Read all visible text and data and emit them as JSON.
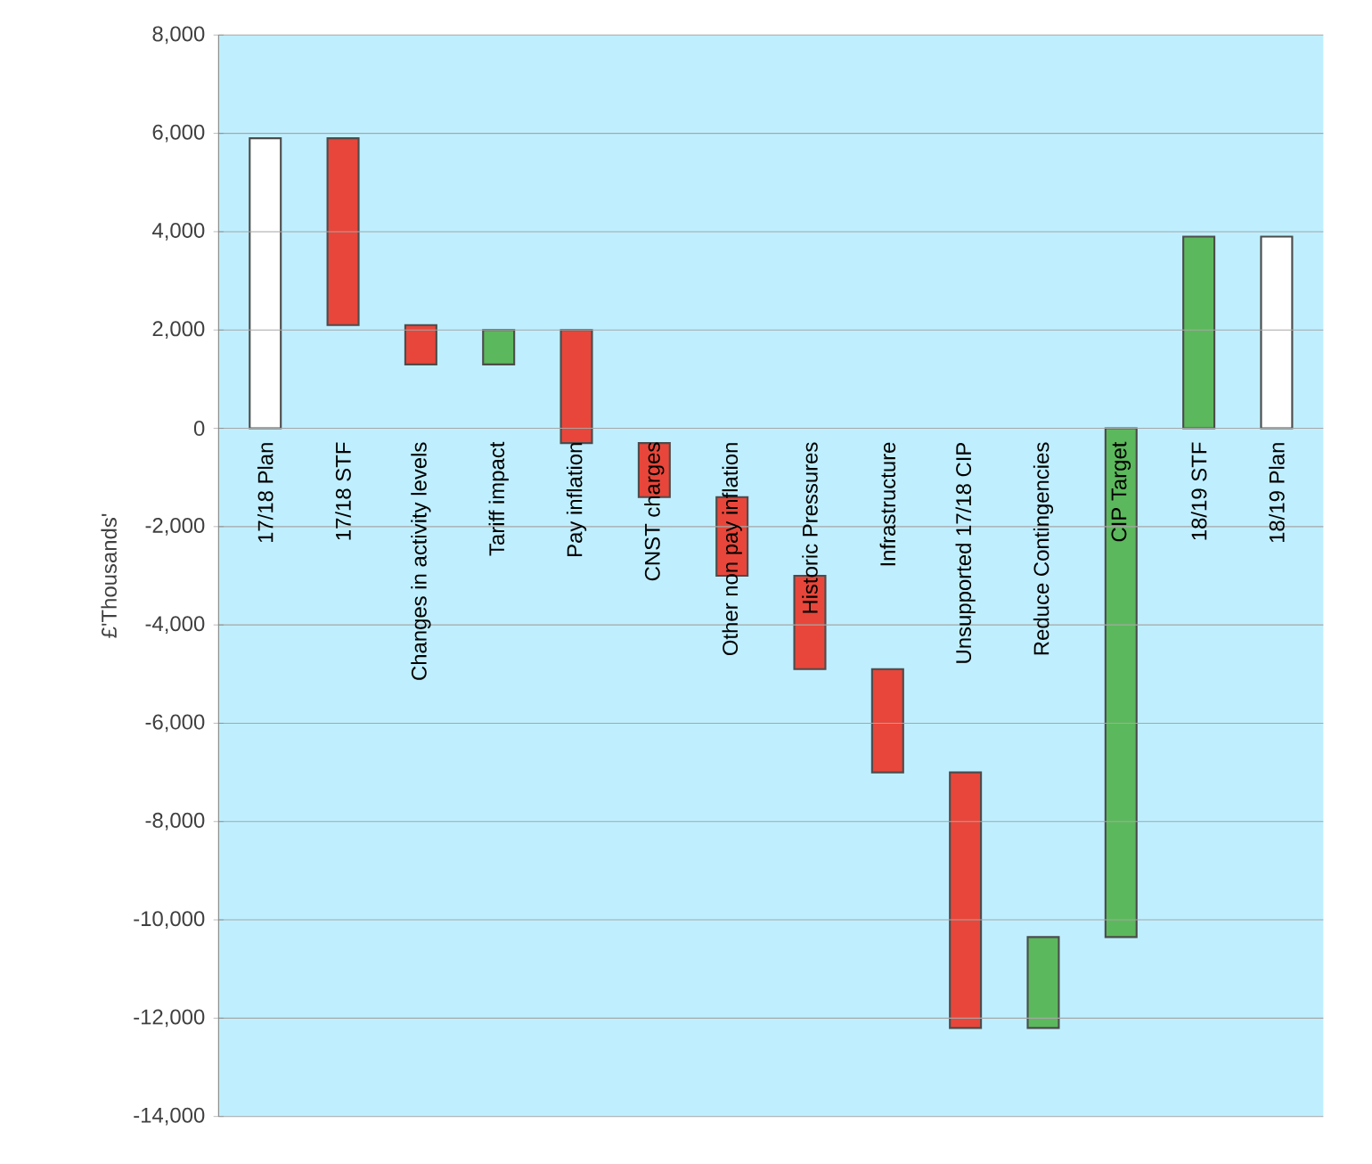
{
  "chart_data": {
    "type": "bar",
    "ylabel": "£'Thousands'",
    "categories": [
      "17/18 Plan",
      "17/18 STF",
      "Changes in activity levels",
      "Tariff impact",
      "Pay inflation",
      "CNST charges",
      "Other non pay inflation",
      "Historic Pressures",
      "Infrastructure",
      "Unsupported 17/18 CIP",
      "Reduce Contingencies",
      "CIP Target",
      "18/19 STF",
      "18/19 Plan"
    ],
    "values": [
      5900,
      3800,
      800,
      700,
      2300,
      1100,
      1600,
      1900,
      2100,
      5200,
      1850,
      10350,
      3900,
      3900
    ],
    "base": [
      0,
      2100,
      1300,
      1300,
      -300,
      -1400,
      -3000,
      -4900,
      -7000,
      -12200,
      -12200,
      -10350,
      0,
      0
    ],
    "colors": [
      "#ffffff",
      "#e8463a",
      "#e8463a",
      "#5cb85c",
      "#e8463a",
      "#e8463a",
      "#e8463a",
      "#e8463a",
      "#e8463a",
      "#e8463a",
      "#5cb85c",
      "#5cb85c",
      "#5cb85c",
      "#ffffff"
    ],
    "ylim": [
      -14000,
      8000
    ],
    "yticks": [
      {
        "value": -14000,
        "label": "-14,000"
      },
      {
        "value": -12000,
        "label": "-12,000"
      },
      {
        "value": -10000,
        "label": "-10,000"
      },
      {
        "value": -8000,
        "label": "-8,000"
      },
      {
        "value": -6000,
        "label": "-6,000"
      },
      {
        "value": -4000,
        "label": "-4,000"
      },
      {
        "value": -2000,
        "label": "-2,000"
      },
      {
        "value": 0,
        "label": "0"
      },
      {
        "value": 2000,
        "label": "2,000"
      },
      {
        "value": 4000,
        "label": "4,000"
      },
      {
        "value": 6000,
        "label": "6,000"
      },
      {
        "value": 8000,
        "label": "8,000"
      }
    ],
    "grid": "y"
  }
}
